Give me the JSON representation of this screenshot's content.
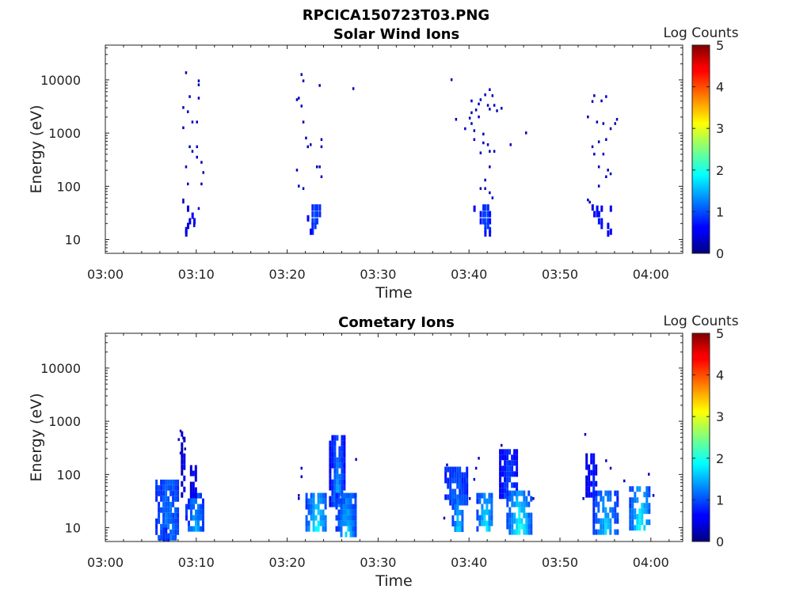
{
  "figure": {
    "main_title": "RPCICA150723T03.PNG"
  },
  "colors": {
    "colormap": "jet",
    "axis": "#222222",
    "background": "#ffffff"
  },
  "chart_data": [
    {
      "type": "heatmap",
      "title": "Solar Wind Ions",
      "xlabel": "Time",
      "ylabel": "Energy (eV)",
      "colorbar_label": "Log Counts",
      "x_tick_labels": [
        "03:00",
        "03:10",
        "03:20",
        "03:30",
        "03:40",
        "03:50",
        "04:00"
      ],
      "x_ticks_min": [
        0,
        10,
        20,
        30,
        40,
        50,
        60
      ],
      "xlim_min": [
        0,
        63.5
      ],
      "y_scale": "log",
      "y_tick_labels": [
        "10",
        "100",
        "1000",
        "10000"
      ],
      "y_ticks": [
        10,
        100,
        1000,
        10000
      ],
      "ylim": [
        5.5,
        45000
      ],
      "color_range": [
        0,
        5
      ],
      "colorbar_ticks": [
        "0",
        "1",
        "2",
        "3",
        "4",
        "5"
      ],
      "points": [
        [
          8.9,
          13500,
          0.3
        ],
        [
          10.3,
          9500,
          0.3
        ],
        [
          10.3,
          8000,
          0.3
        ],
        [
          9.3,
          4800,
          0.3
        ],
        [
          10.3,
          4500,
          0.3
        ],
        [
          8.6,
          3000,
          0.3
        ],
        [
          9.1,
          2500,
          0.3
        ],
        [
          9.6,
          1600,
          0.3
        ],
        [
          10.1,
          1600,
          0.3
        ],
        [
          8.6,
          1250,
          0.3
        ],
        [
          9.3,
          550,
          0.3
        ],
        [
          10.1,
          550,
          0.3
        ],
        [
          9.6,
          450,
          0.3
        ],
        [
          10.1,
          350,
          0.3
        ],
        [
          10.6,
          280,
          0.3
        ],
        [
          8.9,
          230,
          0.3
        ],
        [
          10.8,
          180,
          0.3
        ],
        [
          9.1,
          110,
          0.3
        ],
        [
          10.6,
          110,
          0.3
        ],
        [
          8.6,
          55,
          0.3
        ],
        [
          8.6,
          50,
          0.3
        ],
        [
          9.1,
          38,
          0.5
        ],
        [
          10.3,
          38,
          0.4
        ],
        [
          9.6,
          28,
          0.6
        ],
        [
          9.3,
          22,
          0.5
        ],
        [
          9.1,
          18,
          0.5
        ],
        [
          9.8,
          22,
          0.5
        ],
        [
          9.8,
          18,
          0.4
        ],
        [
          8.9,
          15,
          0.5
        ],
        [
          8.9,
          13,
          0.5
        ],
        [
          21.6,
          12500,
          0.3
        ],
        [
          21.8,
          9500,
          0.3
        ],
        [
          23.6,
          7800,
          0.3
        ],
        [
          21.3,
          4500,
          0.3
        ],
        [
          21.1,
          4200,
          0.3
        ],
        [
          21.6,
          3200,
          0.3
        ],
        [
          21.8,
          1600,
          0.3
        ],
        [
          22.1,
          800,
          0.3
        ],
        [
          22.6,
          600,
          0.3
        ],
        [
          23.8,
          750,
          0.3
        ],
        [
          23.8,
          550,
          0.3
        ],
        [
          22.3,
          550,
          0.3
        ],
        [
          21.1,
          200,
          0.3
        ],
        [
          23.3,
          230,
          0.3
        ],
        [
          23.6,
          230,
          0.3
        ],
        [
          23.8,
          150,
          0.3
        ],
        [
          21.3,
          100,
          0.3
        ],
        [
          21.8,
          90,
          0.3
        ],
        [
          27.3,
          6800,
          0.3
        ],
        [
          22.8,
          40,
          0.8
        ],
        [
          23.1,
          40,
          0.9
        ],
        [
          23.3,
          40,
          0.9
        ],
        [
          23.6,
          40,
          0.8
        ],
        [
          22.8,
          30,
          0.9
        ],
        [
          23.1,
          30,
          1.0
        ],
        [
          23.3,
          30,
          0.9
        ],
        [
          23.6,
          30,
          0.8
        ],
        [
          22.3,
          25,
          0.6
        ],
        [
          22.8,
          22,
          0.9
        ],
        [
          23.1,
          22,
          1.0
        ],
        [
          23.3,
          22,
          0.9
        ],
        [
          22.8,
          18,
          0.8
        ],
        [
          23.1,
          18,
          0.9
        ],
        [
          22.8,
          14,
          0.8
        ],
        [
          22.6,
          14,
          0.6
        ],
        [
          38.1,
          10000,
          0.3
        ],
        [
          42.3,
          6500,
          0.3
        ],
        [
          41.8,
          5200,
          0.3
        ],
        [
          42.6,
          5000,
          0.3
        ],
        [
          40.3,
          4000,
          0.3
        ],
        [
          41.3,
          4200,
          0.3
        ],
        [
          41.1,
          3500,
          0.3
        ],
        [
          42.1,
          3300,
          0.3
        ],
        [
          42.8,
          3300,
          0.3
        ],
        [
          43.6,
          2900,
          0.3
        ],
        [
          42.3,
          2800,
          0.3
        ],
        [
          40.8,
          2700,
          0.3
        ],
        [
          43.1,
          2600,
          0.3
        ],
        [
          40.3,
          2400,
          0.3
        ],
        [
          40.1,
          1900,
          0.3
        ],
        [
          41.1,
          2000,
          0.3
        ],
        [
          38.6,
          1800,
          0.3
        ],
        [
          40.3,
          1500,
          0.3
        ],
        [
          39.6,
          1200,
          0.3
        ],
        [
          40.6,
          1100,
          0.3
        ],
        [
          41.6,
          950,
          0.3
        ],
        [
          40.6,
          750,
          0.3
        ],
        [
          41.6,
          650,
          0.3
        ],
        [
          42.1,
          600,
          0.3
        ],
        [
          42.3,
          450,
          0.3
        ],
        [
          42.8,
          450,
          0.3
        ],
        [
          41.3,
          420,
          0.3
        ],
        [
          46.3,
          1000,
          0.3
        ],
        [
          44.6,
          600,
          0.3
        ],
        [
          42.3,
          230,
          0.3
        ],
        [
          41.8,
          130,
          0.3
        ],
        [
          41.3,
          90,
          0.3
        ],
        [
          41.8,
          90,
          0.3
        ],
        [
          42.3,
          75,
          0.3
        ],
        [
          42.6,
          60,
          0.3
        ],
        [
          41.6,
          40,
          0.8
        ],
        [
          41.8,
          40,
          0.9
        ],
        [
          42.1,
          40,
          0.8
        ],
        [
          40.6,
          38,
          0.6
        ],
        [
          41.3,
          30,
          0.7
        ],
        [
          41.6,
          30,
          0.9
        ],
        [
          41.8,
          30,
          1.0
        ],
        [
          42.1,
          30,
          0.9
        ],
        [
          42.3,
          30,
          0.7
        ],
        [
          41.3,
          22,
          0.7
        ],
        [
          41.6,
          22,
          0.9
        ],
        [
          41.8,
          22,
          1.0
        ],
        [
          42.1,
          22,
          0.9
        ],
        [
          42.3,
          22,
          0.7
        ],
        [
          41.8,
          18,
          0.9
        ],
        [
          42.1,
          18,
          0.9
        ],
        [
          41.8,
          15,
          0.8
        ],
        [
          42.3,
          15,
          0.8
        ],
        [
          41.8,
          13,
          0.7
        ],
        [
          42.3,
          13,
          0.7
        ],
        [
          53.8,
          5000,
          0.3
        ],
        [
          55.1,
          4800,
          0.3
        ],
        [
          54.6,
          4000,
          0.3
        ],
        [
          53.6,
          3900,
          0.3
        ],
        [
          56.3,
          1800,
          0.3
        ],
        [
          53.1,
          2000,
          0.3
        ],
        [
          54.1,
          1600,
          0.3
        ],
        [
          54.8,
          1500,
          0.3
        ],
        [
          56.1,
          1500,
          0.3
        ],
        [
          55.6,
          1200,
          0.3
        ],
        [
          54.3,
          680,
          0.3
        ],
        [
          55.1,
          750,
          0.3
        ],
        [
          53.6,
          550,
          0.3
        ],
        [
          54.8,
          400,
          0.3
        ],
        [
          53.8,
          400,
          0.3
        ],
        [
          54.3,
          230,
          0.3
        ],
        [
          55.3,
          200,
          0.3
        ],
        [
          55.6,
          170,
          0.3
        ],
        [
          55.1,
          150,
          0.3
        ],
        [
          54.3,
          100,
          0.3
        ],
        [
          53.1,
          55,
          0.3
        ],
        [
          53.3,
          50,
          0.3
        ],
        [
          53.6,
          40,
          0.5
        ],
        [
          54.1,
          38,
          0.6
        ],
        [
          55.6,
          38,
          0.5
        ],
        [
          54.6,
          38,
          0.5
        ],
        [
          53.8,
          30,
          0.6
        ],
        [
          54.1,
          30,
          0.7
        ],
        [
          54.3,
          30,
          0.7
        ],
        [
          54.3,
          22,
          0.7
        ],
        [
          54.6,
          22,
          0.7
        ],
        [
          54.6,
          18,
          0.7
        ],
        [
          55.3,
          18,
          0.6
        ],
        [
          55.6,
          14,
          0.6
        ],
        [
          55.3,
          13,
          0.6
        ]
      ]
    },
    {
      "type": "heatmap",
      "title": "Cometary Ions",
      "xlabel": "Time",
      "ylabel": "Energy (eV)",
      "colorbar_label": "Log Counts",
      "x_tick_labels": [
        "03:00",
        "03:10",
        "03:20",
        "03:30",
        "03:40",
        "03:50",
        "04:00"
      ],
      "x_ticks_min": [
        0,
        10,
        20,
        30,
        40,
        50,
        60
      ],
      "xlim_min": [
        0,
        63.5
      ],
      "y_scale": "log",
      "y_tick_labels": [
        "10",
        "100",
        "1000",
        "10000"
      ],
      "y_ticks": [
        10,
        100,
        1000,
        10000
      ],
      "ylim": [
        5.5,
        45000
      ],
      "color_range": [
        0,
        5
      ],
      "colorbar_ticks": [
        "0",
        "1",
        "2",
        "3",
        "4",
        "5"
      ],
      "regions": [
        {
          "x": [
            5.5,
            8.0
          ],
          "e": [
            7,
            80
          ],
          "base": 0.8,
          "peak": 1.3
        },
        {
          "x": [
            6.3,
            7.0
          ],
          "e": [
            5.8,
            10
          ],
          "base": 0.7,
          "peak": 1.0
        },
        {
          "x": [
            8.3,
            8.8
          ],
          "e": [
            40,
            650
          ],
          "base": 0.3,
          "peak": 0.6
        },
        {
          "x": [
            8.8,
            10.8
          ],
          "e": [
            9,
            45
          ],
          "base": 0.7,
          "peak": 1.6
        },
        {
          "x": [
            9.3,
            10.0
          ],
          "e": [
            45,
            150
          ],
          "base": 0.4,
          "peak": 0.7
        },
        {
          "x": [
            22.0,
            24.3
          ],
          "e": [
            9,
            45
          ],
          "base": 0.8,
          "peak": 2.0
        },
        {
          "x": [
            24.6,
            26.3
          ],
          "e": [
            30,
            550
          ],
          "base": 0.5,
          "peak": 1.5
        },
        {
          "x": [
            25.3,
            27.6
          ],
          "e": [
            8,
            45
          ],
          "base": 0.7,
          "peak": 1.7
        },
        {
          "x": [
            37.3,
            39.8
          ],
          "e": [
            30,
            140
          ],
          "base": 0.7,
          "peak": 1.2
        },
        {
          "x": [
            38.1,
            39.3
          ],
          "e": [
            9,
            35
          ],
          "base": 0.8,
          "peak": 1.8
        },
        {
          "x": [
            40.8,
            42.6
          ],
          "e": [
            9,
            45
          ],
          "base": 0.8,
          "peak": 2.0
        },
        {
          "x": [
            43.3,
            45.3
          ],
          "e": [
            40,
            300
          ],
          "base": 0.5,
          "peak": 1.1
        },
        {
          "x": [
            44.1,
            46.8
          ],
          "e": [
            9,
            50
          ],
          "base": 0.8,
          "peak": 2.1
        },
        {
          "x": [
            52.8,
            54.1
          ],
          "e": [
            45,
            250
          ],
          "base": 0.4,
          "peak": 0.9
        },
        {
          "x": [
            53.6,
            56.3
          ],
          "e": [
            9,
            50
          ],
          "base": 0.7,
          "peak": 1.7
        },
        {
          "x": [
            57.6,
            59.8
          ],
          "e": [
            9,
            60
          ],
          "base": 0.8,
          "peak": 2.1
        }
      ],
      "points": [
        [
          8.3,
          650,
          0.3
        ],
        [
          8.6,
          480,
          0.3
        ],
        [
          8.1,
          450,
          0.3
        ],
        [
          8.8,
          300,
          0.3
        ],
        [
          8.3,
          250,
          0.3
        ],
        [
          21.6,
          130,
          0.3
        ],
        [
          21.6,
          90,
          0.3
        ],
        [
          21.3,
          40,
          0.3
        ],
        [
          27.6,
          190,
          0.3
        ],
        [
          21.3,
          35,
          0.3
        ],
        [
          37.6,
          150,
          0.3
        ],
        [
          37.3,
          15,
          0.3
        ],
        [
          41.1,
          200,
          0.3
        ],
        [
          40.8,
          130,
          0.3
        ],
        [
          40.6,
          80,
          0.3
        ],
        [
          43.6,
          350,
          0.3
        ],
        [
          47.1,
          35,
          0.3
        ],
        [
          40.1,
          35,
          0.3
        ],
        [
          52.8,
          560,
          0.3
        ],
        [
          55.1,
          180,
          0.3
        ],
        [
          55.6,
          130,
          0.3
        ],
        [
          57.1,
          75,
          0.3
        ],
        [
          52.6,
          35,
          0.3
        ],
        [
          60.3,
          40,
          0.3
        ],
        [
          59.8,
          100,
          0.3
        ]
      ]
    }
  ]
}
